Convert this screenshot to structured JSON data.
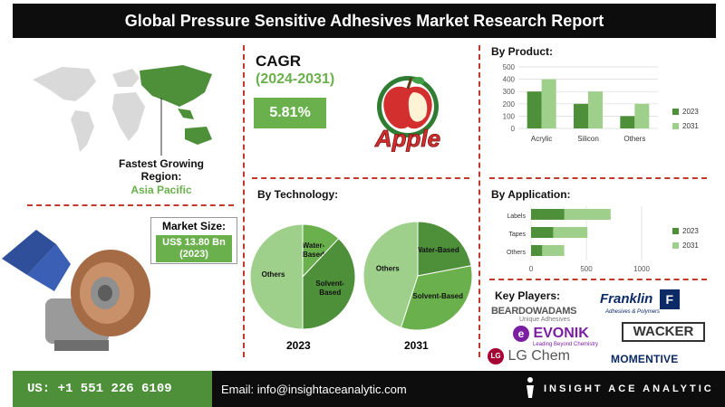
{
  "header": {
    "title": "Global Pressure Sensitive Adhesives Market Research Report"
  },
  "region": {
    "label": "Fastest Growing Region:",
    "value": "Asia Pacific"
  },
  "cagr": {
    "title": "CAGR",
    "period": "(2024-2031)",
    "value": "5.81%"
  },
  "market_size": {
    "label": "Market Size:",
    "value": "US$ 13.80 Bn (2023)"
  },
  "logo": {
    "text": "Apple"
  },
  "technology": {
    "title": "By Technology:",
    "year_a": "2023",
    "year_b": "2031"
  },
  "product": {
    "title": "By Product:"
  },
  "application": {
    "title": "By Application:"
  },
  "players": {
    "title": "Key Players:",
    "beardow": "BEARDOWADAMS",
    "beardow_sub": "Unique Adhesives",
    "franklin": "Franklin",
    "franklin_sub": "Adhesives & Polymers",
    "evonik": "EVONIK",
    "evonik_sub": "Leading Beyond Chemistry",
    "wacker": "WACKER",
    "lgchem": "LG Chem",
    "momentive": "MOMENTIVE"
  },
  "footer": {
    "phone": "US: +1 551 226 6109",
    "email": "Email: info@insightaceanalytic.com",
    "brand": "INSIGHT ACE ANALYTIC"
  },
  "colors": {
    "dark_green": "#4e8f3a",
    "light_green": "#9fd08b",
    "mid_green": "#6ab04c",
    "accent_red": "#c0392b"
  },
  "chart_data": [
    {
      "id": "product",
      "type": "bar",
      "categories": [
        "Acrylic",
        "Silicon",
        "Others"
      ],
      "series": [
        {
          "name": "2023",
          "values": [
            300,
            200,
            100
          ]
        },
        {
          "name": "2031",
          "values": [
            400,
            300,
            200
          ]
        }
      ],
      "ylim": [
        0,
        500
      ],
      "yticks": [
        "0",
        "100",
        "200",
        "300",
        "400",
        "500"
      ],
      "legend": "right"
    },
    {
      "id": "application",
      "type": "bar",
      "orientation": "horizontal",
      "categories": [
        "Labels",
        "Tapes",
        "Others"
      ],
      "series": [
        {
          "name": "2023",
          "values": [
            300,
            200,
            100
          ]
        },
        {
          "name": "2031",
          "values": [
            720,
            510,
            300
          ]
        }
      ],
      "xlim": [
        0,
        1000
      ],
      "xticks": [
        "0",
        "500",
        "1000"
      ],
      "legend": "right"
    },
    {
      "id": "tech_2023",
      "type": "pie",
      "labels": [
        "Water-Based",
        "Solvent-Based",
        "Others"
      ],
      "values": [
        12,
        38,
        50
      ]
    },
    {
      "id": "tech_2031",
      "type": "pie",
      "labels": [
        "Water-Based",
        "Solvent-Based",
        "Others"
      ],
      "values": [
        22,
        33,
        45
      ]
    }
  ]
}
